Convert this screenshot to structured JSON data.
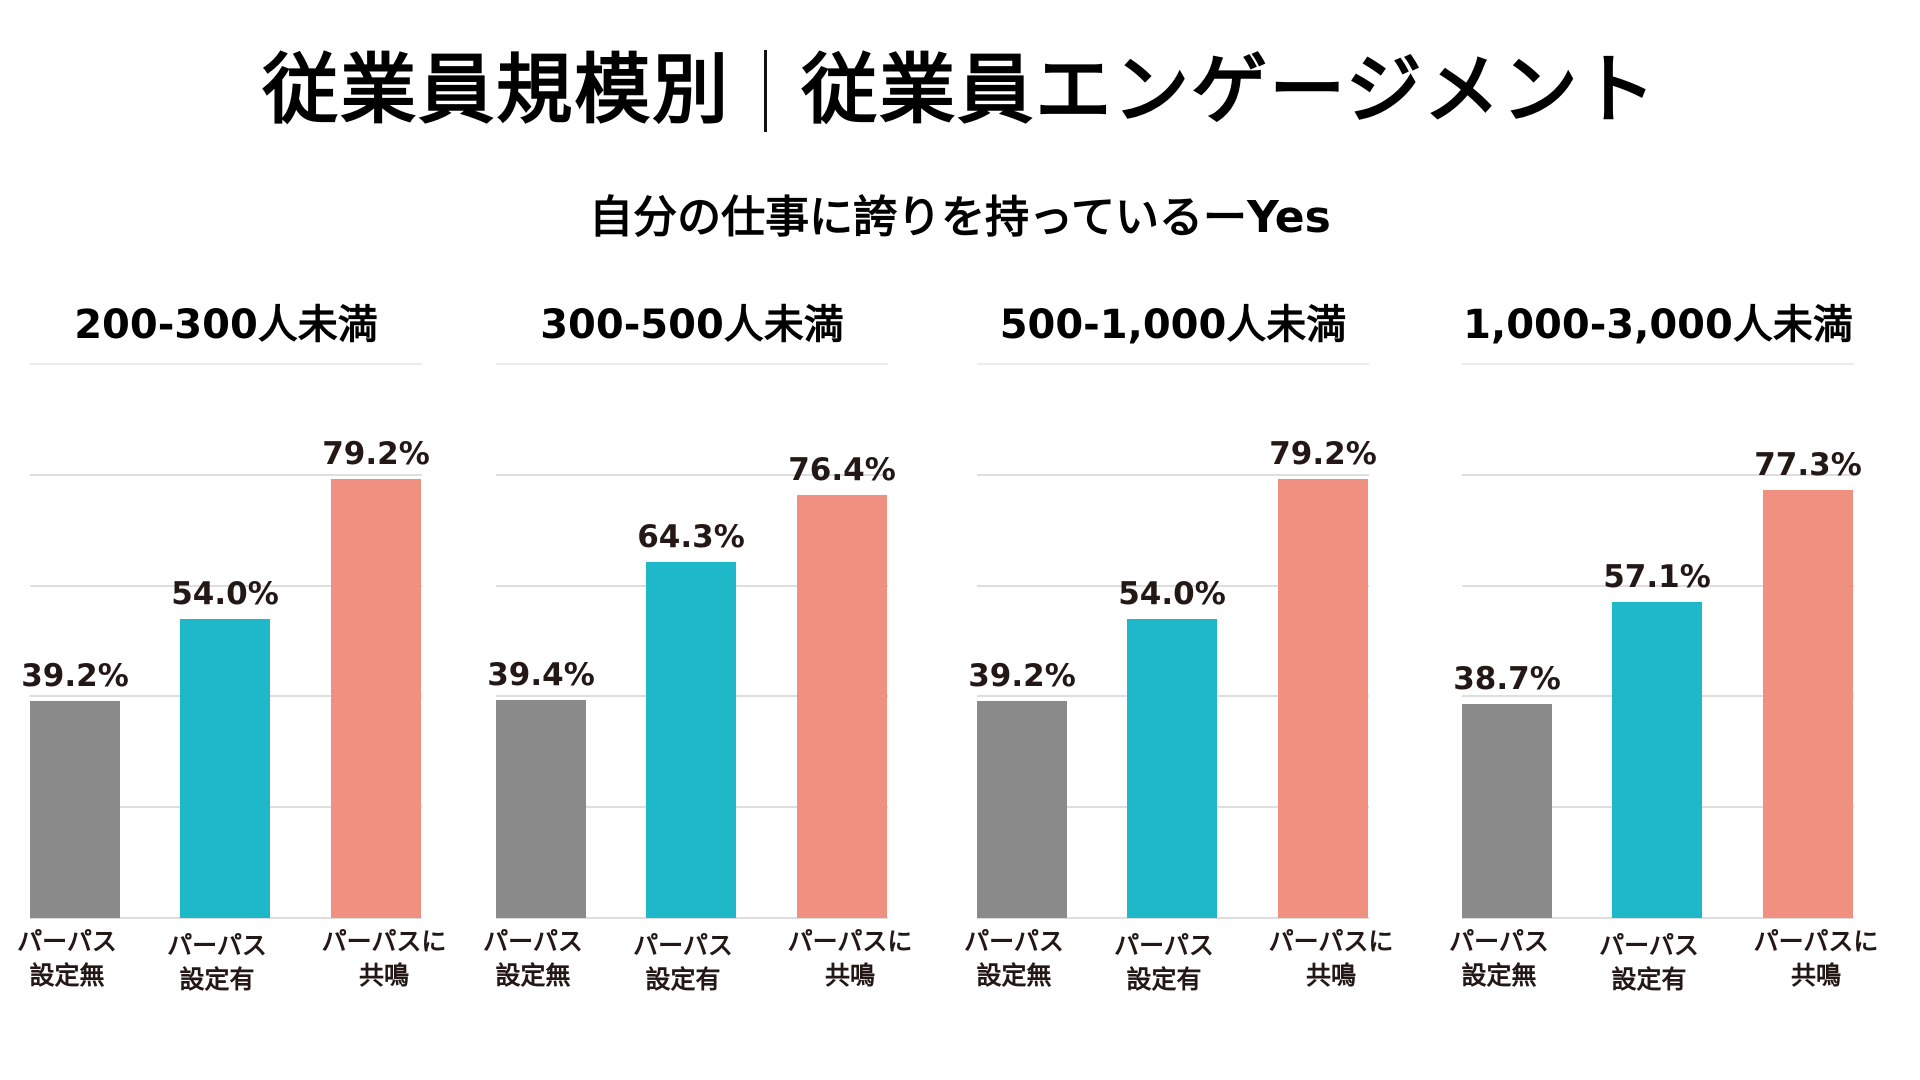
{
  "header": {
    "title_left": "従業員規模別",
    "title_right": "従業員エンゲージメント",
    "subtitle": "自分の仕事に誇りを持っているーYes"
  },
  "colors": {
    "no_purpose": "#8a8a8a",
    "has_purpose": "#1eb8c9",
    "resonates": "#f09080",
    "text": "#231815",
    "grid": "#dedede"
  },
  "chart_data": {
    "type": "bar",
    "title": "自分の仕事に誇りを持っているーYes",
    "ylim": [
      0,
      100
    ],
    "yticks": [
      0,
      20,
      40,
      60,
      80,
      100
    ],
    "grid": true,
    "categories": [
      {
        "line1": "パーパス",
        "line2": "設定無"
      },
      {
        "line1": "パーパス",
        "line2": "設定有"
      },
      {
        "line1": "パーパスに",
        "line2": "共鳴"
      }
    ],
    "panels": [
      {
        "title": "200-300人未満",
        "values": [
          39.2,
          54.0,
          79.2
        ],
        "labels": [
          "39.2%",
          "54.0%",
          "79.2%"
        ]
      },
      {
        "title": "300-500人未満",
        "values": [
          39.4,
          64.3,
          76.4
        ],
        "labels": [
          "39.4%",
          "64.3%",
          "76.4%"
        ]
      },
      {
        "title": "500-1,000人未満",
        "values": [
          39.2,
          54.0,
          79.2
        ],
        "labels": [
          "39.2%",
          "54.0%",
          "79.2%"
        ]
      },
      {
        "title": "1,000-3,000人未満",
        "values": [
          38.7,
          57.1,
          77.3
        ],
        "labels": [
          "38.7%",
          "57.1%",
          "77.3%"
        ]
      }
    ]
  }
}
